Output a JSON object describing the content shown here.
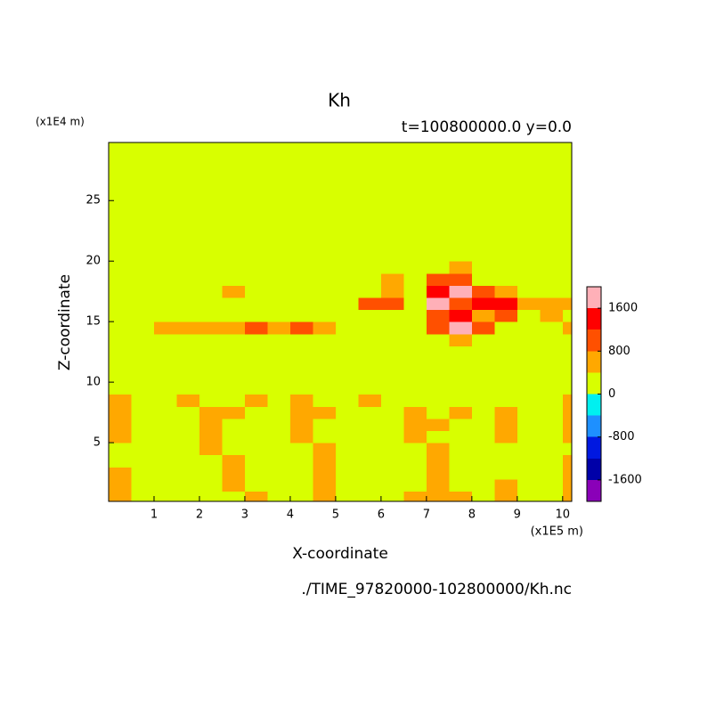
{
  "chart_data": {
    "type": "contour",
    "title": "Kh",
    "subtitle": "t=100800000.0 y=0.0",
    "xlabel": "X-coordinate",
    "ylabel": "Z-coordinate",
    "x_unit": "(x1E5 m)",
    "y_unit": "(x1E4 m)",
    "footer": "./TIME_97820000-102800000/Kh.nc",
    "xlim": [
      0,
      10.2
    ],
    "ylim": [
      0.15,
      29.8
    ],
    "xticks": [
      1,
      2,
      3,
      4,
      5,
      6,
      7,
      8,
      9,
      10
    ],
    "yticks": [
      5,
      10,
      15,
      20,
      25
    ],
    "x": [
      0.25,
      0.75,
      1.25,
      1.75,
      2.25,
      2.75,
      3.25,
      3.75,
      4.25,
      4.75,
      5.25,
      5.75,
      6.25,
      6.75,
      7.25,
      7.75,
      8.25,
      8.75,
      9.25,
      9.75,
      10.25
    ],
    "y": [
      0.5,
      1.5,
      2.5,
      3.5,
      4.5,
      5.5,
      6.5,
      7.5,
      8.5,
      9.5,
      10.5,
      11.5,
      12.5,
      13.5,
      14.5,
      15.5,
      16.5,
      17.5,
      18.5,
      19.5,
      20.5,
      21.5,
      22.5,
      23.5,
      24.5,
      25.5,
      26.5,
      27.5,
      28.5,
      29.5
    ],
    "z": [
      [
        600,
        200,
        200,
        200,
        200,
        200,
        600,
        200,
        200,
        600,
        200,
        200,
        200,
        600,
        600,
        600,
        200,
        600,
        200,
        200,
        600
      ],
      [
        600,
        200,
        200,
        200,
        200,
        600,
        200,
        200,
        200,
        600,
        200,
        200,
        200,
        200,
        600,
        200,
        200,
        600,
        200,
        200,
        600
      ],
      [
        600,
        200,
        200,
        200,
        200,
        600,
        200,
        200,
        200,
        600,
        200,
        200,
        200,
        200,
        600,
        200,
        200,
        200,
        200,
        200,
        600
      ],
      [
        200,
        200,
        200,
        200,
        200,
        600,
        200,
        200,
        200,
        600,
        200,
        200,
        200,
        200,
        600,
        200,
        200,
        200,
        200,
        200,
        600
      ],
      [
        200,
        200,
        200,
        200,
        600,
        200,
        200,
        200,
        200,
        600,
        200,
        200,
        200,
        200,
        600,
        200,
        200,
        200,
        200,
        200,
        200
      ],
      [
        600,
        200,
        200,
        200,
        600,
        200,
        200,
        200,
        600,
        200,
        200,
        200,
        200,
        600,
        200,
        200,
        200,
        600,
        200,
        200,
        600
      ],
      [
        600,
        200,
        200,
        200,
        600,
        200,
        200,
        200,
        600,
        200,
        200,
        200,
        200,
        600,
        600,
        200,
        200,
        600,
        200,
        200,
        600
      ],
      [
        600,
        200,
        200,
        200,
        600,
        600,
        200,
        200,
        600,
        600,
        200,
        200,
        200,
        600,
        200,
        600,
        200,
        600,
        200,
        200,
        600
      ],
      [
        600,
        200,
        200,
        600,
        200,
        200,
        600,
        200,
        600,
        200,
        200,
        600,
        200,
        200,
        200,
        200,
        200,
        200,
        200,
        200,
        600
      ],
      [
        200,
        200,
        200,
        200,
        200,
        200,
        200,
        200,
        200,
        200,
        200,
        200,
        200,
        200,
        200,
        200,
        200,
        200,
        200,
        200,
        200
      ],
      [
        200,
        200,
        200,
        200,
        200,
        200,
        200,
        200,
        200,
        200,
        200,
        200,
        200,
        200,
        200,
        200,
        200,
        200,
        200,
        200,
        200
      ],
      [
        200,
        200,
        200,
        200,
        200,
        200,
        200,
        200,
        200,
        200,
        200,
        200,
        200,
        200,
        200,
        200,
        200,
        200,
        200,
        200,
        200
      ],
      [
        200,
        200,
        200,
        200,
        200,
        200,
        200,
        200,
        200,
        200,
        200,
        200,
        200,
        200,
        200,
        200,
        200,
        200,
        200,
        200,
        200
      ],
      [
        200,
        200,
        200,
        200,
        200,
        200,
        200,
        200,
        200,
        200,
        200,
        200,
        200,
        200,
        200,
        600,
        200,
        200,
        200,
        200,
        200
      ],
      [
        200,
        200,
        600,
        600,
        600,
        600,
        1000,
        600,
        1000,
        600,
        200,
        200,
        200,
        200,
        1000,
        1800,
        1000,
        200,
        200,
        200,
        600
      ],
      [
        200,
        200,
        200,
        200,
        200,
        200,
        200,
        200,
        200,
        200,
        200,
        200,
        200,
        200,
        1000,
        1400,
        600,
        1000,
        200,
        600,
        200
      ],
      [
        200,
        200,
        200,
        200,
        200,
        200,
        200,
        200,
        200,
        200,
        200,
        1000,
        1000,
        200,
        1800,
        1000,
        1400,
        1400,
        600,
        600,
        600
      ],
      [
        200,
        200,
        200,
        200,
        200,
        600,
        200,
        200,
        200,
        200,
        200,
        200,
        600,
        200,
        1400,
        1800,
        1000,
        600,
        200,
        200,
        200
      ],
      [
        200,
        200,
        200,
        200,
        200,
        200,
        200,
        200,
        200,
        200,
        200,
        200,
        600,
        200,
        1000,
        1000,
        200,
        200,
        200,
        200,
        200
      ],
      [
        200,
        200,
        200,
        200,
        200,
        200,
        200,
        200,
        200,
        200,
        200,
        200,
        200,
        200,
        200,
        600,
        200,
        200,
        200,
        200,
        200
      ],
      [
        200,
        200,
        200,
        200,
        200,
        200,
        200,
        200,
        200,
        200,
        200,
        200,
        200,
        200,
        200,
        200,
        200,
        200,
        200,
        200,
        200
      ],
      [
        200,
        200,
        200,
        200,
        200,
        200,
        200,
        200,
        200,
        200,
        200,
        200,
        200,
        200,
        200,
        200,
        200,
        200,
        200,
        200,
        200
      ],
      [
        200,
        200,
        200,
        200,
        200,
        200,
        200,
        200,
        200,
        200,
        200,
        200,
        200,
        200,
        200,
        200,
        200,
        200,
        200,
        200,
        200
      ],
      [
        200,
        200,
        200,
        200,
        200,
        200,
        200,
        200,
        200,
        200,
        200,
        200,
        200,
        200,
        200,
        200,
        200,
        200,
        200,
        200,
        200
      ],
      [
        200,
        200,
        200,
        200,
        200,
        200,
        200,
        200,
        200,
        200,
        200,
        200,
        200,
        200,
        200,
        200,
        200,
        200,
        200,
        200,
        200
      ],
      [
        200,
        200,
        200,
        200,
        200,
        200,
        200,
        200,
        200,
        200,
        200,
        200,
        200,
        200,
        200,
        200,
        200,
        200,
        200,
        200,
        200
      ],
      [
        200,
        200,
        200,
        200,
        200,
        200,
        200,
        200,
        200,
        200,
        200,
        200,
        200,
        200,
        200,
        200,
        200,
        200,
        200,
        200,
        200
      ],
      [
        200,
        200,
        200,
        200,
        200,
        200,
        200,
        200,
        200,
        200,
        200,
        200,
        200,
        200,
        200,
        200,
        200,
        200,
        200,
        200,
        200
      ],
      [
        200,
        200,
        200,
        200,
        200,
        200,
        200,
        200,
        200,
        200,
        200,
        200,
        200,
        200,
        200,
        200,
        200,
        200,
        200,
        200,
        200
      ],
      [
        200,
        200,
        200,
        200,
        200,
        200,
        200,
        200,
        200,
        200,
        200,
        200,
        200,
        200,
        200,
        200,
        200,
        200,
        200,
        200,
        200
      ]
    ],
    "levels": [
      -1600,
      -1200,
      -800,
      -400,
      0,
      400,
      800,
      1200,
      1600
    ],
    "colors": [
      "#8a00b8",
      "#0000a8",
      "#0018e0",
      "#1e90ff",
      "#00f0f0",
      "#d8ff00",
      "#ffa800",
      "#ff5000",
      "#ff0000",
      "#ffb0b8"
    ],
    "colorbar_lim": [
      -2000,
      2000
    ],
    "colorbar_ticks": [
      -1600,
      -800,
      0,
      800,
      1600
    ]
  }
}
